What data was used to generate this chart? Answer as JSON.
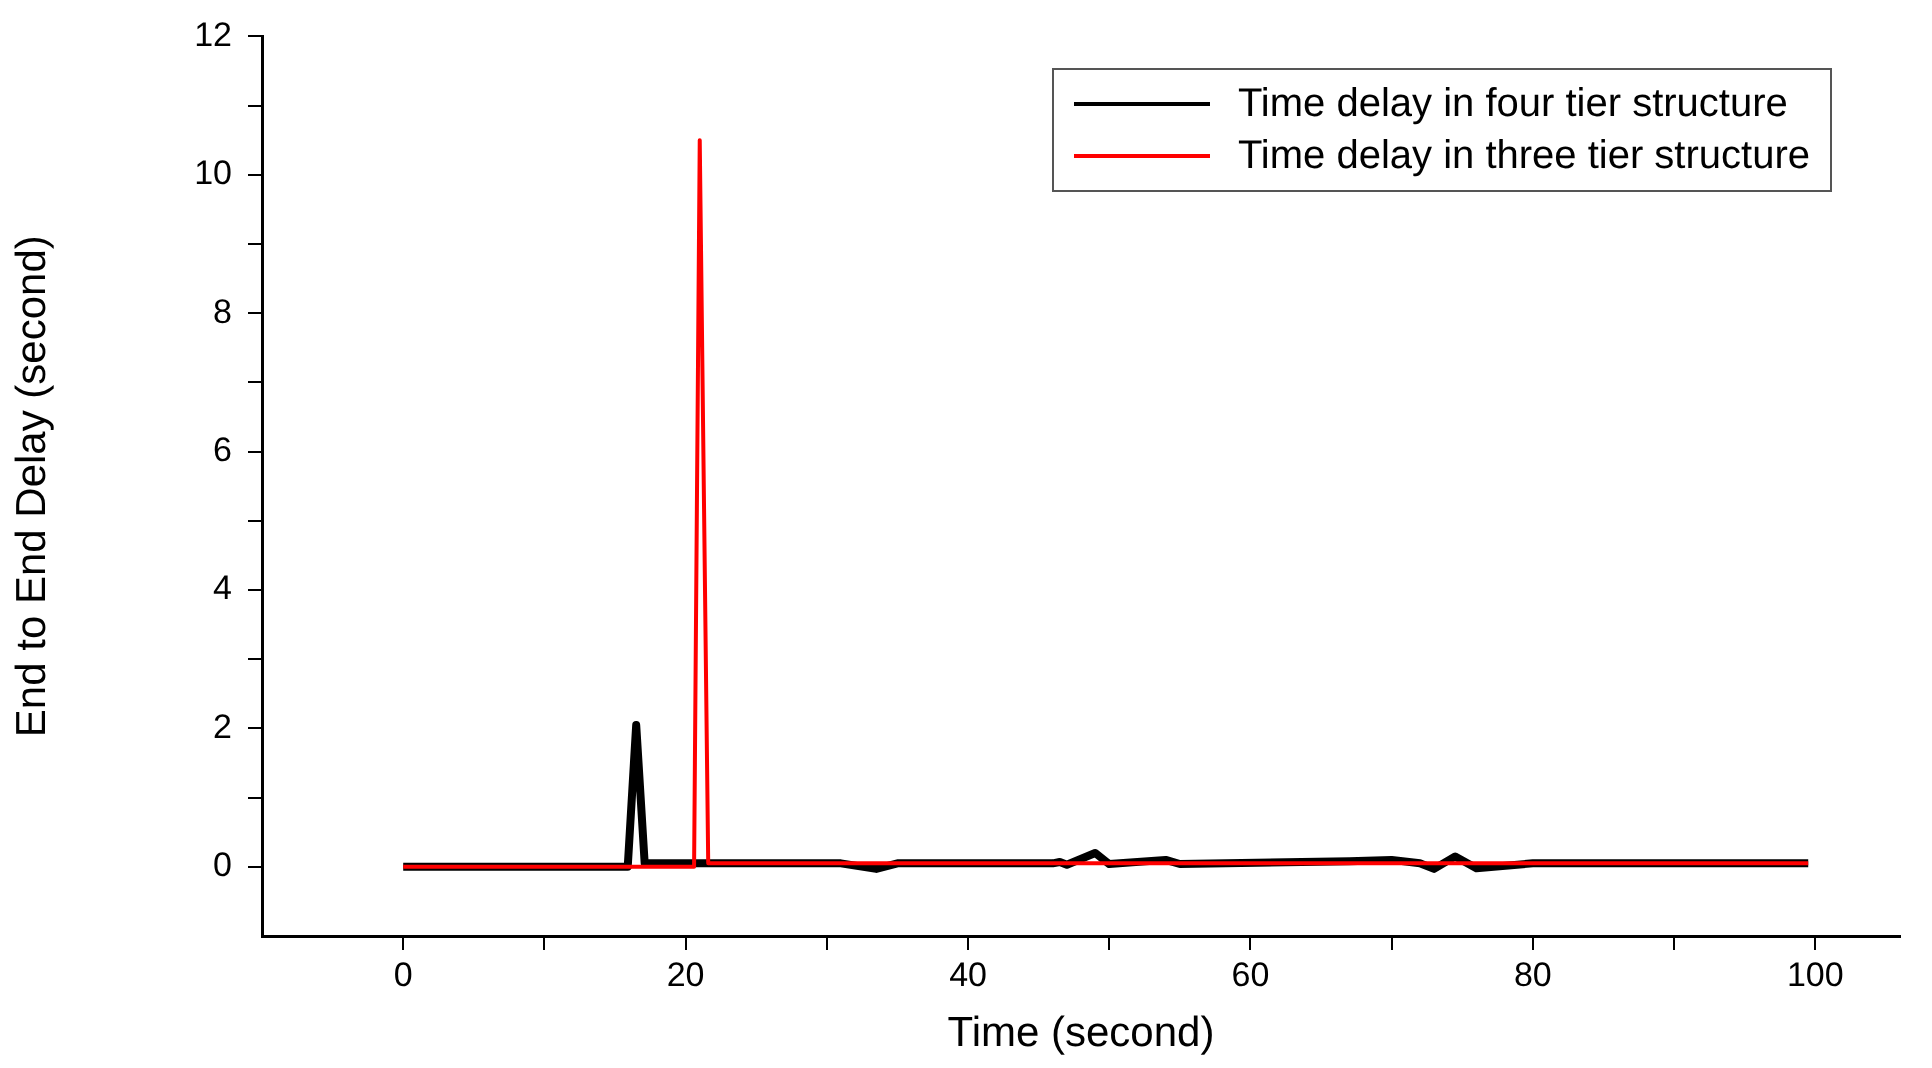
{
  "chart_data": {
    "type": "line",
    "xlabel": "Time (second)",
    "ylabel": "End to End Delay (second)",
    "xlim": [
      -10,
      106
    ],
    "xticks": [
      0,
      {
        "value": 10,
        "label": null
      },
      20,
      {
        "value": 30,
        "label": null
      },
      40,
      {
        "value": 50,
        "label": null
      },
      60,
      {
        "value": 70,
        "label": null
      },
      80,
      {
        "value": 90,
        "label": null
      },
      100
    ],
    "ylim": [
      -1,
      12
    ],
    "yticks": [
      0,
      {
        "value": 1,
        "label": null
      },
      2,
      {
        "value": 3,
        "label": null
      },
      4,
      {
        "value": 5,
        "label": null
      },
      6,
      {
        "value": 7,
        "label": null
      },
      8,
      {
        "value": 9,
        "label": null
      },
      10,
      {
        "value": 11,
        "label": null
      },
      12
    ],
    "grid": false,
    "legend": "top right",
    "marker": "none",
    "line_style": "solid",
    "series": [
      {
        "name": "Time delay in four tier structure",
        "color": "#000000",
        "x": [
          0,
          15.9,
          16.5,
          17.1,
          20.5,
          21.5,
          31,
          33.5,
          35,
          46,
          46.5,
          47,
          49,
          50,
          54,
          55,
          67,
          70,
          72,
          73,
          74.5,
          76,
          80,
          99.5
        ],
        "values": [
          0,
          0,
          2.05,
          0.05,
          0.05,
          0.05,
          0.05,
          -0.03,
          0.05,
          0.05,
          0.07,
          0.03,
          0.2,
          0.04,
          0.1,
          0.04,
          0.08,
          0.1,
          0.05,
          -0.03,
          0.15,
          -0.02,
          0.05,
          0.05
        ]
      },
      {
        "name": "Time delay in three tier structure",
        "color": "#ff0000",
        "x": [
          0,
          20.6,
          21,
          21.6,
          99.5
        ],
        "values": [
          0,
          0,
          10.5,
          0.05,
          0.05
        ]
      }
    ]
  }
}
